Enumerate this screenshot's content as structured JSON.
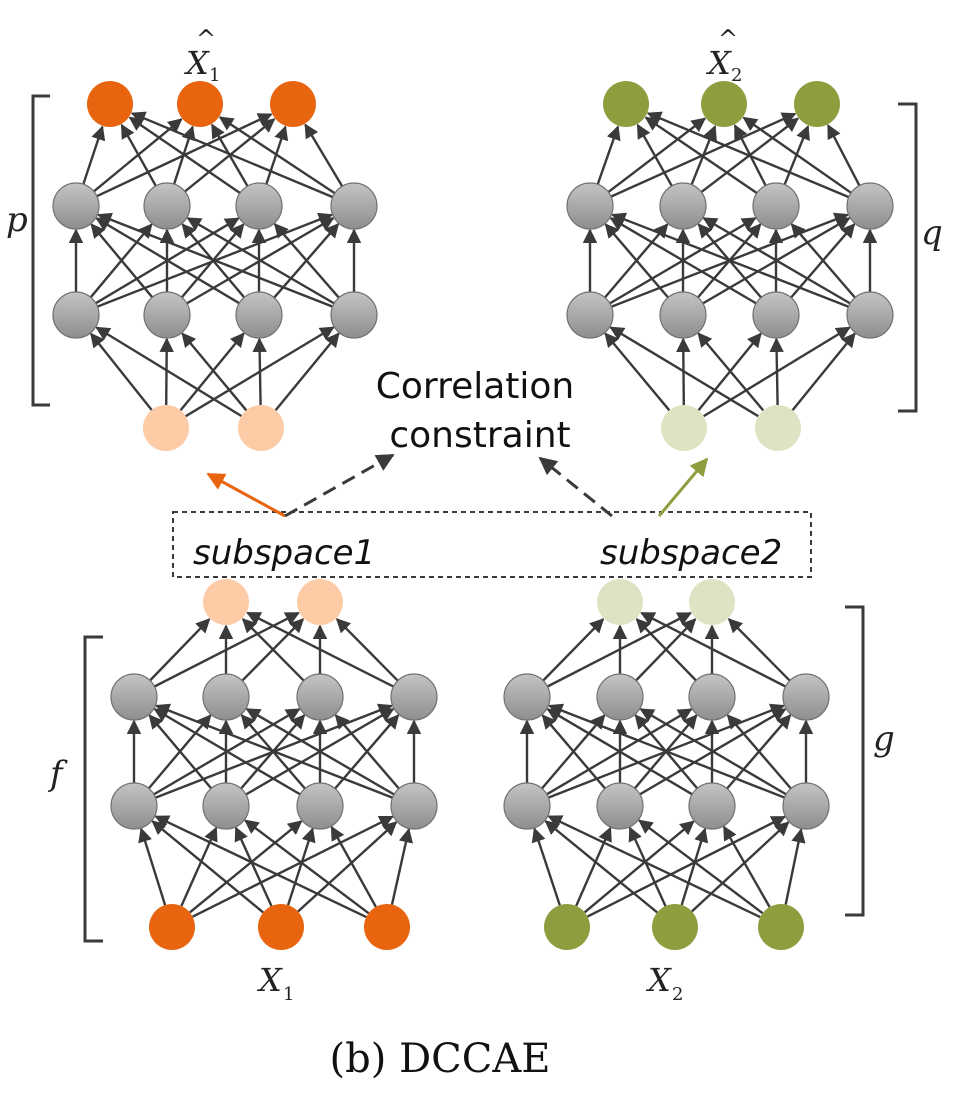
{
  "caption": "(b) DCCAE",
  "correlation_label": [
    "Correlation",
    "constraint"
  ],
  "subspace_labels": {
    "left": "subspace1",
    "right": "subspace2"
  },
  "bracket_labels": {
    "p": "p",
    "q": "q",
    "f": "f",
    "g": "g"
  },
  "input_labels": {
    "x1": {
      "base": "X",
      "sub": "1"
    },
    "x2": {
      "base": "X",
      "sub": "2"
    }
  },
  "output_labels": {
    "x1_hat": {
      "base": "X",
      "sub": "1",
      "hat": "^"
    },
    "x2_hat": {
      "base": "X",
      "sub": "2",
      "hat": "^"
    }
  },
  "colors": {
    "orange": "#E8640F",
    "orange_light": "#FDCBA6",
    "green": "#8E9E3F",
    "green_light": "#DDE4C3",
    "hidden": "#A5A5A5",
    "edge": "#3A3A3A",
    "orange_arrow": "#E8640F",
    "green_arrow": "#8E9E3F"
  }
}
